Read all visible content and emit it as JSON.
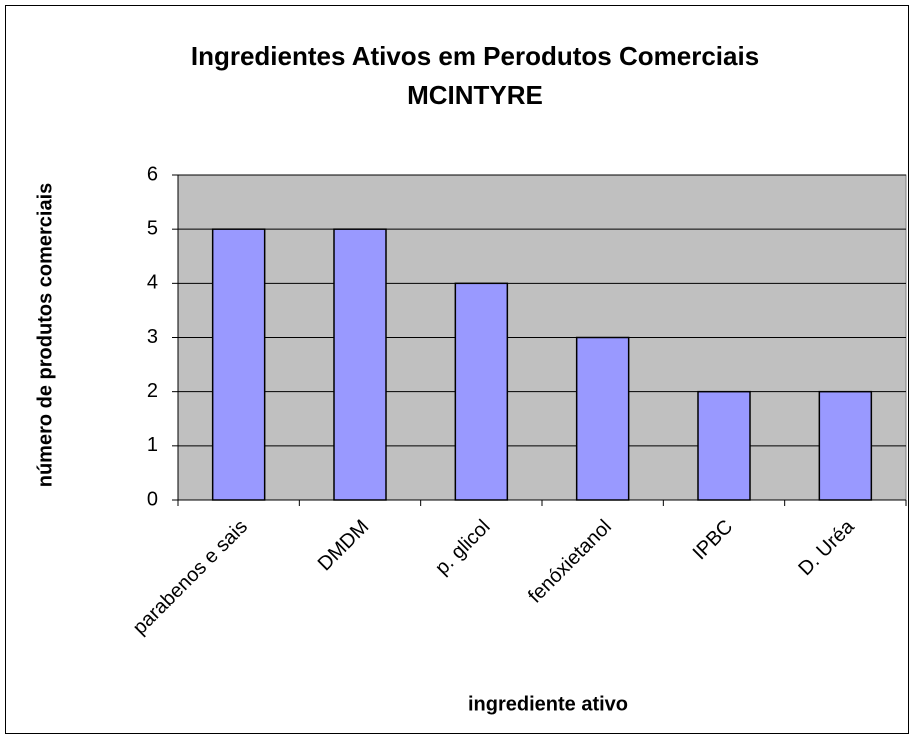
{
  "chart_data": {
    "type": "bar",
    "title": [
      "Ingredientes Ativos em Perodutos Comerciais",
      "MCINTYRE"
    ],
    "x_label": "ingrediente ativo",
    "y_label": "número de produtos comerciais",
    "categories": [
      "parabenos e sais",
      "DMDM",
      "p. glicol",
      "fenóxietanol",
      "IPBC",
      "D. Uréa"
    ],
    "values": [
      5,
      5,
      4,
      3,
      2,
      2
    ],
    "color": "#9999ff",
    "plot_background": "#c0c0c0",
    "ylim": [
      0,
      6
    ],
    "yticks": [
      0,
      1,
      2,
      3,
      4,
      5,
      6
    ],
    "grid": true
  }
}
